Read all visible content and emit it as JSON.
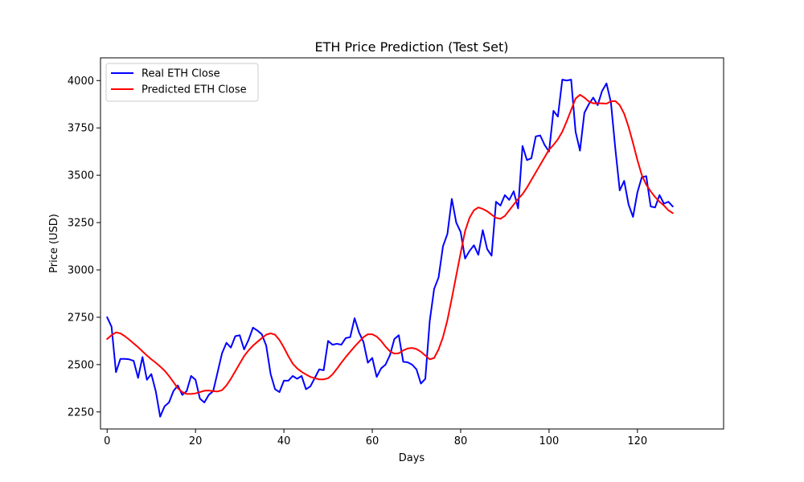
{
  "chart_data": {
    "type": "line",
    "title": "ETH Price Prediction (Test Set)",
    "xlabel": "Days",
    "ylabel": "Price (USD)",
    "xlim": [
      -1.5,
      139.5
    ],
    "ylim": [
      2160,
      4120
    ],
    "x_ticks": [
      0,
      20,
      40,
      60,
      80,
      100,
      120
    ],
    "y_ticks": [
      2250,
      2500,
      2750,
      3000,
      3250,
      3500,
      3750,
      4000
    ],
    "grid": false,
    "legend_position": "upper-left",
    "series": [
      {
        "name": "Real ETH Close",
        "color": "#0000ff",
        "values": [
          2750,
          2700,
          2460,
          2530,
          2530,
          2528,
          2520,
          2430,
          2540,
          2420,
          2450,
          2360,
          2225,
          2280,
          2300,
          2360,
          2390,
          2340,
          2360,
          2440,
          2420,
          2320,
          2300,
          2340,
          2360,
          2460,
          2560,
          2615,
          2590,
          2650,
          2655,
          2580,
          2630,
          2695,
          2680,
          2660,
          2600,
          2450,
          2370,
          2355,
          2415,
          2415,
          2440,
          2425,
          2440,
          2370,
          2385,
          2430,
          2475,
          2470,
          2625,
          2605,
          2610,
          2605,
          2640,
          2645,
          2745,
          2670,
          2620,
          2510,
          2535,
          2435,
          2480,
          2500,
          2550,
          2635,
          2655,
          2515,
          2512,
          2500,
          2475,
          2400,
          2425,
          2730,
          2900,
          2960,
          3125,
          3190,
          3375,
          3250,
          3200,
          3060,
          3100,
          3130,
          3080,
          3210,
          3110,
          3075,
          3360,
          3340,
          3395,
          3370,
          3415,
          3325,
          3655,
          3580,
          3590,
          3705,
          3710,
          3660,
          3625,
          3840,
          3810,
          4005,
          4000,
          4005,
          3730,
          3630,
          3830,
          3875,
          3910,
          3870,
          3945,
          3985,
          3885,
          3640,
          3420,
          3470,
          3345,
          3280,
          3410,
          3490,
          3495,
          3335,
          3330,
          3395,
          3350,
          3360,
          3335
        ]
      },
      {
        "name": "Predicted ETH Close",
        "color": "#ff0000",
        "values": [
          2635,
          2655,
          2670,
          2665,
          2650,
          2632,
          2612,
          2592,
          2570,
          2548,
          2528,
          2510,
          2490,
          2468,
          2440,
          2408,
          2375,
          2355,
          2345,
          2345,
          2348,
          2355,
          2362,
          2363,
          2360,
          2358,
          2365,
          2390,
          2425,
          2465,
          2505,
          2545,
          2575,
          2600,
          2620,
          2640,
          2658,
          2665,
          2658,
          2630,
          2590,
          2545,
          2505,
          2480,
          2462,
          2448,
          2435,
          2428,
          2422,
          2422,
          2428,
          2448,
          2478,
          2510,
          2540,
          2568,
          2595,
          2620,
          2645,
          2660,
          2660,
          2648,
          2625,
          2595,
          2570,
          2558,
          2560,
          2575,
          2585,
          2588,
          2582,
          2568,
          2548,
          2528,
          2535,
          2580,
          2645,
          2735,
          2850,
          2970,
          3090,
          3205,
          3275,
          3315,
          3330,
          3322,
          3310,
          3292,
          3275,
          3270,
          3285,
          3315,
          3345,
          3375,
          3400,
          3435,
          3475,
          3515,
          3555,
          3595,
          3635,
          3660,
          3690,
          3730,
          3785,
          3845,
          3905,
          3925,
          3910,
          3890,
          3880,
          3880,
          3880,
          3878,
          3890,
          3892,
          3870,
          3825,
          3755,
          3670,
          3580,
          3500,
          3450,
          3415,
          3385,
          3360,
          3340,
          3315,
          3300
        ]
      }
    ]
  }
}
